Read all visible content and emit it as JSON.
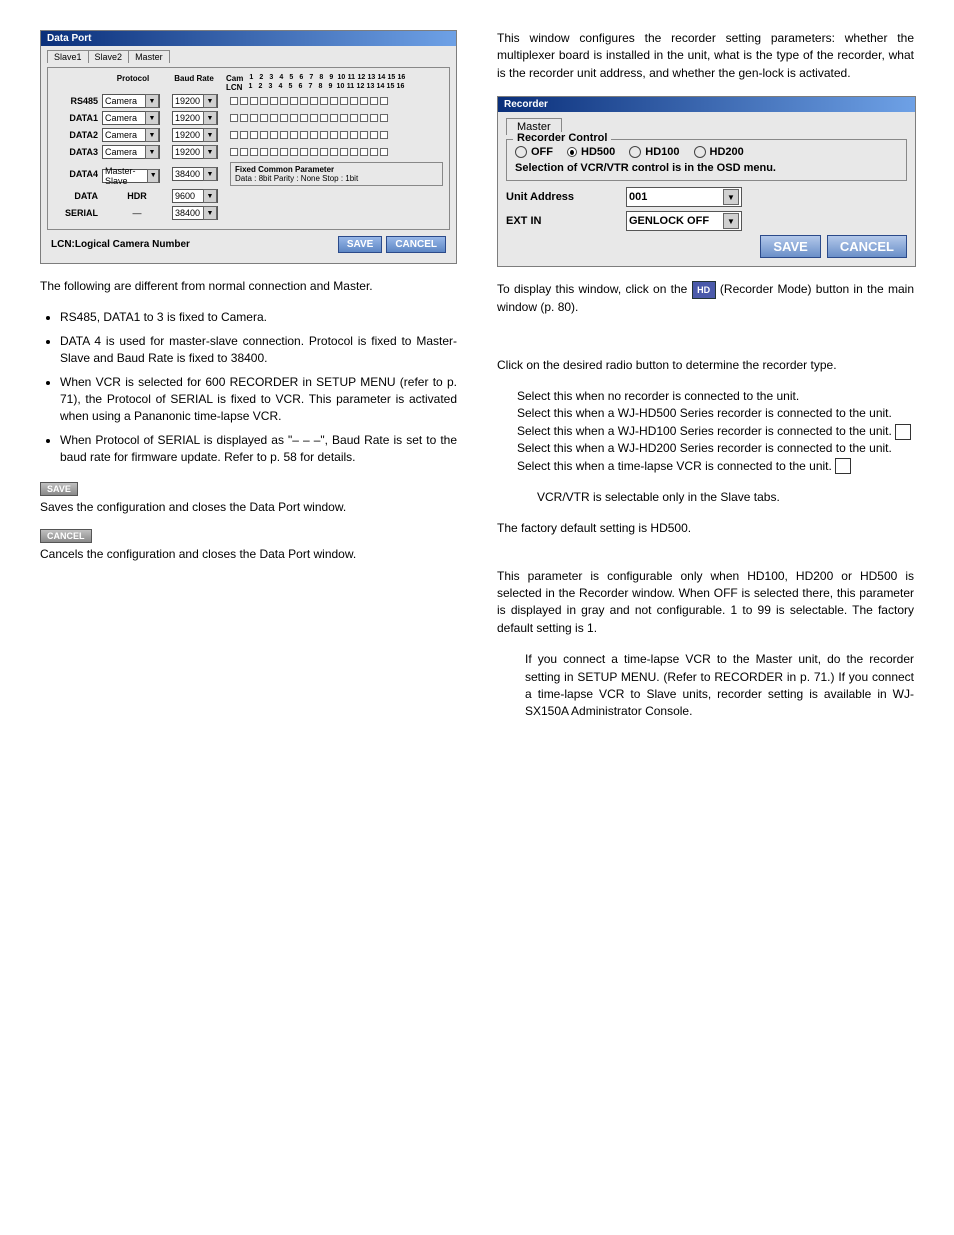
{
  "dataPort": {
    "title": "Data Port",
    "tabs": [
      "Slave1",
      "Slave2",
      "Master"
    ],
    "headers": {
      "protocol": "Protocol",
      "baud": "Baud Rate",
      "cam": "Cam",
      "lcn": "LCN"
    },
    "gridNums": [
      "1",
      "2",
      "3",
      "4",
      "5",
      "6",
      "7",
      "8",
      "9",
      "10",
      "11",
      "12",
      "13",
      "14",
      "15",
      "16"
    ],
    "rows": [
      {
        "port": "RS485",
        "proto": "Camera",
        "baud": "19200",
        "grid": true
      },
      {
        "port": "DATA1",
        "proto": "Camera",
        "baud": "19200",
        "grid": true
      },
      {
        "port": "DATA2",
        "proto": "Camera",
        "baud": "19200",
        "grid": true
      },
      {
        "port": "DATA3",
        "proto": "Camera",
        "baud": "19200",
        "grid": true
      },
      {
        "port": "DATA4",
        "proto": "Master-Slave",
        "baud": "38400",
        "grid": false,
        "fixed": true
      },
      {
        "port": "DATA",
        "proto": "HDR",
        "baud": "9600",
        "grid": false
      },
      {
        "port": "SERIAL",
        "proto": "—",
        "baud": "38400",
        "grid": false
      }
    ],
    "fixedHeader": "Fixed Common Parameter",
    "fixedText": "Data : 8bit   Parity : None   Stop : 1bit",
    "lcnNote": "LCN:Logical Camera Number",
    "save": "SAVE",
    "cancel": "CANCEL"
  },
  "leftText": {
    "intro": "The following are different from normal connection and Master.",
    "bullets": [
      "RS485, DATA1 to 3 is fixed to Camera.",
      "DATA 4 is used for master-slave connection. Protocol is fixed to Master-Slave and Baud Rate is fixed to 38400.",
      "When VCR is selected for 600 RECORDER in SETUP MENU (refer to p. 71), the Protocol of SERIAL is fixed to VCR. This parameter is activated when using a Pananonic time-lapse VCR.",
      "When Protocol of SERIAL is displayed as \"– – –\", Baud Rate is set to the baud rate for firmware update. Refer to p. 58 for details."
    ],
    "saveBtn": "SAVE",
    "saveText": "Saves the configuration and closes the Data Port window.",
    "cancelBtn": "CANCEL",
    "cancelText": "Cancels the configuration and closes the Data Port window."
  },
  "recorder": {
    "introPara": "This window configures the recorder setting parameters: whether the multiplexer board is installed in the unit, what is the type of the recorder, what is the recorder unit address, and whether the gen-lock is activated.",
    "title": "Recorder",
    "tab": "Master",
    "legend": "Recorder Control",
    "radios": [
      "OFF",
      "HD500",
      "HD100",
      "HD200"
    ],
    "radioSelected": 1,
    "note": "Selection of VCR/VTR control is in the OSD menu.",
    "unitAddressLabel": "Unit Address",
    "unitAddressVal": "001",
    "extInLabel": "EXT IN",
    "extInVal": "GENLOCK OFF",
    "save": "SAVE",
    "cancel": "CANCEL",
    "displayLine1": "To display this window, click on the ",
    "displayLine2": " (Recorder Mode) button in the main window (p. 80).",
    "iconText": "HD",
    "clickPara": "Click on the desired radio button to determine the recorder type.",
    "optOff": "Select this when no recorder is connected to the unit.",
    "optHd500": "Select this when a WJ-HD500 Series recorder is connected to the unit.",
    "optHd100": "Select this when a WJ-HD100 Series recorder is connected to the unit. ",
    "optHd200": "Select this when a WJ-HD200 Series recorder is connected to the unit.",
    "optVcr": "Select this when a time-lapse VCR is connected to the unit. ",
    "vcrNote": "VCR/VTR is selectable only in the Slave tabs.",
    "factory": "The factory default setting is HD500.",
    "unitPara": "This parameter is configurable only when HD100, HD200 or HD500 is selected in the Recorder window. When OFF is selected there, this parameter is displayed in gray and not configurable. 1 to 99 is selectable. The factory default setting is 1.",
    "finalNote": "If you connect a time-lapse VCR to the Master unit, do the recorder setting in SETUP MENU. (Refer to RECORDER in p. 71.) If you connect a time-lapse VCR to Slave units, recorder setting is available in WJ-SX150A Administrator Console."
  }
}
